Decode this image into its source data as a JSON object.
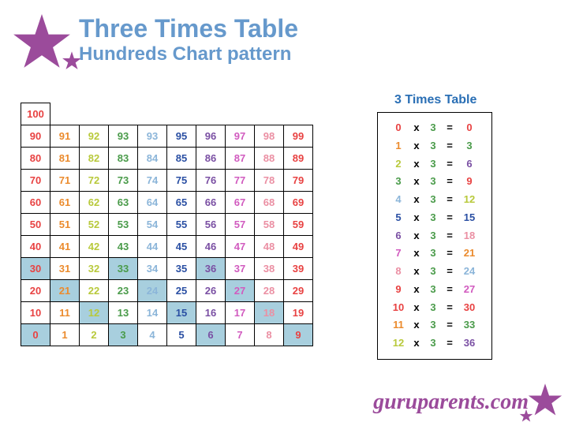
{
  "colors": {
    "title": "#6699cc",
    "star": "#9b4b9b",
    "highlight": "#a8cfde",
    "palette": [
      "#e84242",
      "#eb8b2d",
      "#b8c93b",
      "#4a9b4a",
      "#8bb5d9",
      "#2a4fa3",
      "#7a4fa3",
      "#d15bbf",
      "#eb8fa3",
      "#e84242"
    ],
    "footer": "#9b4b9b",
    "times_b": "#4a9b4a"
  },
  "header": {
    "title": "Three Times Table",
    "subtitle": "Hundreds Chart pattern"
  },
  "hundreds": {
    "rows": [
      [
        100,
        null,
        null,
        null,
        null,
        null,
        null,
        null,
        null,
        null
      ],
      [
        90,
        91,
        92,
        93,
        93,
        95,
        96,
        97,
        98,
        99
      ],
      [
        80,
        81,
        82,
        83,
        84,
        85,
        86,
        87,
        88,
        89
      ],
      [
        70,
        71,
        72,
        73,
        74,
        75,
        76,
        77,
        78,
        79
      ],
      [
        60,
        61,
        62,
        63,
        64,
        65,
        66,
        67,
        68,
        69
      ],
      [
        50,
        51,
        52,
        53,
        54,
        55,
        56,
        57,
        58,
        59
      ],
      [
        40,
        41,
        42,
        43,
        44,
        45,
        46,
        47,
        48,
        49
      ],
      [
        30,
        31,
        32,
        33,
        34,
        35,
        36,
        37,
        38,
        39
      ],
      [
        20,
        21,
        22,
        23,
        24,
        25,
        26,
        27,
        28,
        29
      ],
      [
        10,
        11,
        12,
        13,
        14,
        15,
        16,
        17,
        18,
        19
      ],
      [
        0,
        1,
        2,
        3,
        4,
        5,
        6,
        7,
        8,
        9
      ]
    ],
    "highlighted": [
      0,
      3,
      6,
      9,
      12,
      15,
      18,
      21,
      24,
      27,
      30,
      33,
      36
    ]
  },
  "times": {
    "title": "3 Times Table",
    "b": 3,
    "entries": [
      {
        "a": 0,
        "r": 0
      },
      {
        "a": 1,
        "r": 3
      },
      {
        "a": 2,
        "r": 6
      },
      {
        "a": 3,
        "r": 9
      },
      {
        "a": 4,
        "r": 12
      },
      {
        "a": 5,
        "r": 15
      },
      {
        "a": 6,
        "r": 18
      },
      {
        "a": 7,
        "r": 21
      },
      {
        "a": 8,
        "r": 24
      },
      {
        "a": 9,
        "r": 27
      },
      {
        "a": 10,
        "r": 30
      },
      {
        "a": 11,
        "r": 33
      },
      {
        "a": 12,
        "r": 36
      }
    ]
  },
  "footer": {
    "text": "guruparents.com"
  }
}
